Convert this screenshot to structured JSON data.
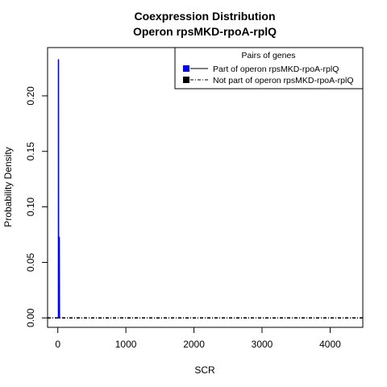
{
  "chart_data": {
    "type": "line",
    "title_lines": [
      "Coexpression Distribution",
      "Operon rpsMKD-rpoA-rplQ"
    ],
    "xlabel": "SCR",
    "ylabel": "Probability Density",
    "xlim": [
      -150,
      4480
    ],
    "ylim": [
      -0.0085,
      0.2435
    ],
    "x_ticks": [
      0,
      1000,
      2000,
      3000,
      4000
    ],
    "x_tick_labels": [
      "0",
      "1000",
      "2000",
      "3000",
      "4000"
    ],
    "y_ticks": [
      0.0,
      0.05,
      0.1,
      0.15,
      0.2
    ],
    "y_tick_labels": [
      "0.00",
      "0.05",
      "0.10",
      "0.15",
      "0.20"
    ],
    "legend": {
      "title": "Pairs of genes",
      "placement": "top-right"
    },
    "series": [
      {
        "name": "Part of operon rpsMKD-rpoA-rplQ",
        "color": "#0000ff",
        "line_style": "solid",
        "points": [
          [
            10,
            0
          ],
          [
            10,
            0.233
          ],
          [
            12,
            0
          ],
          [
            22,
            0
          ],
          [
            22,
            0.073
          ],
          [
            25,
            0
          ]
        ]
      },
      {
        "name": "Not part of operon rpsMKD-rpoA-rplQ",
        "color": "#000000",
        "line_style": "dashdot",
        "points": [
          [
            -150,
            0
          ],
          [
            4480,
            0
          ]
        ]
      }
    ]
  }
}
